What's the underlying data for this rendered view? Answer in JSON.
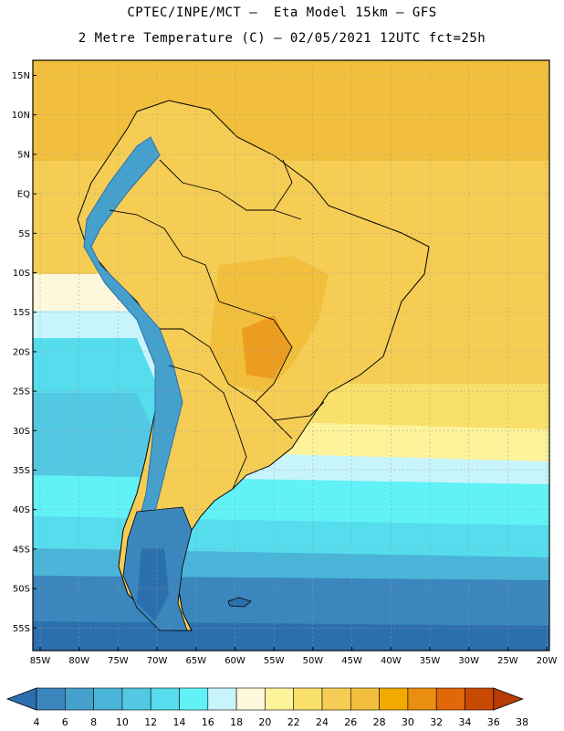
{
  "header": {
    "line1": "CPTEC/INPE/MCT –  Eta Model 15km – GFS",
    "line2": "2 Metre Temperature (C) – 02/05/2021 12UTC fct=25h"
  },
  "axes": {
    "lat_labels": [
      "15N",
      "10N",
      "5N",
      "EQ",
      "5S",
      "10S",
      "15S",
      "20S",
      "25S",
      "30S",
      "35S",
      "40S",
      "45S",
      "50S",
      "55S"
    ],
    "lon_labels": [
      "85W",
      "80W",
      "75W",
      "70W",
      "65W",
      "60W",
      "55W",
      "50W",
      "45W",
      "40W",
      "35W",
      "30W",
      "25W",
      "20W"
    ]
  },
  "colorbar": {
    "labels": [
      "4",
      "6",
      "8",
      "10",
      "12",
      "14",
      "16",
      "18",
      "20",
      "22",
      "24",
      "26",
      "28",
      "30",
      "32",
      "34",
      "36",
      "38"
    ],
    "colors": [
      "#2c6fae",
      "#3a86bd",
      "#45a0cb",
      "#4ab5d8",
      "#52c8e2",
      "#55dced",
      "#60f2f6",
      "#c8f4fb",
      "#fdf8dc",
      "#fdf39a",
      "#f9e06a",
      "#f5cd55",
      "#f2bf3c",
      "#f2a900",
      "#ea8e12",
      "#e0670a",
      "#c84a02",
      "#b83c06"
    ]
  }
}
